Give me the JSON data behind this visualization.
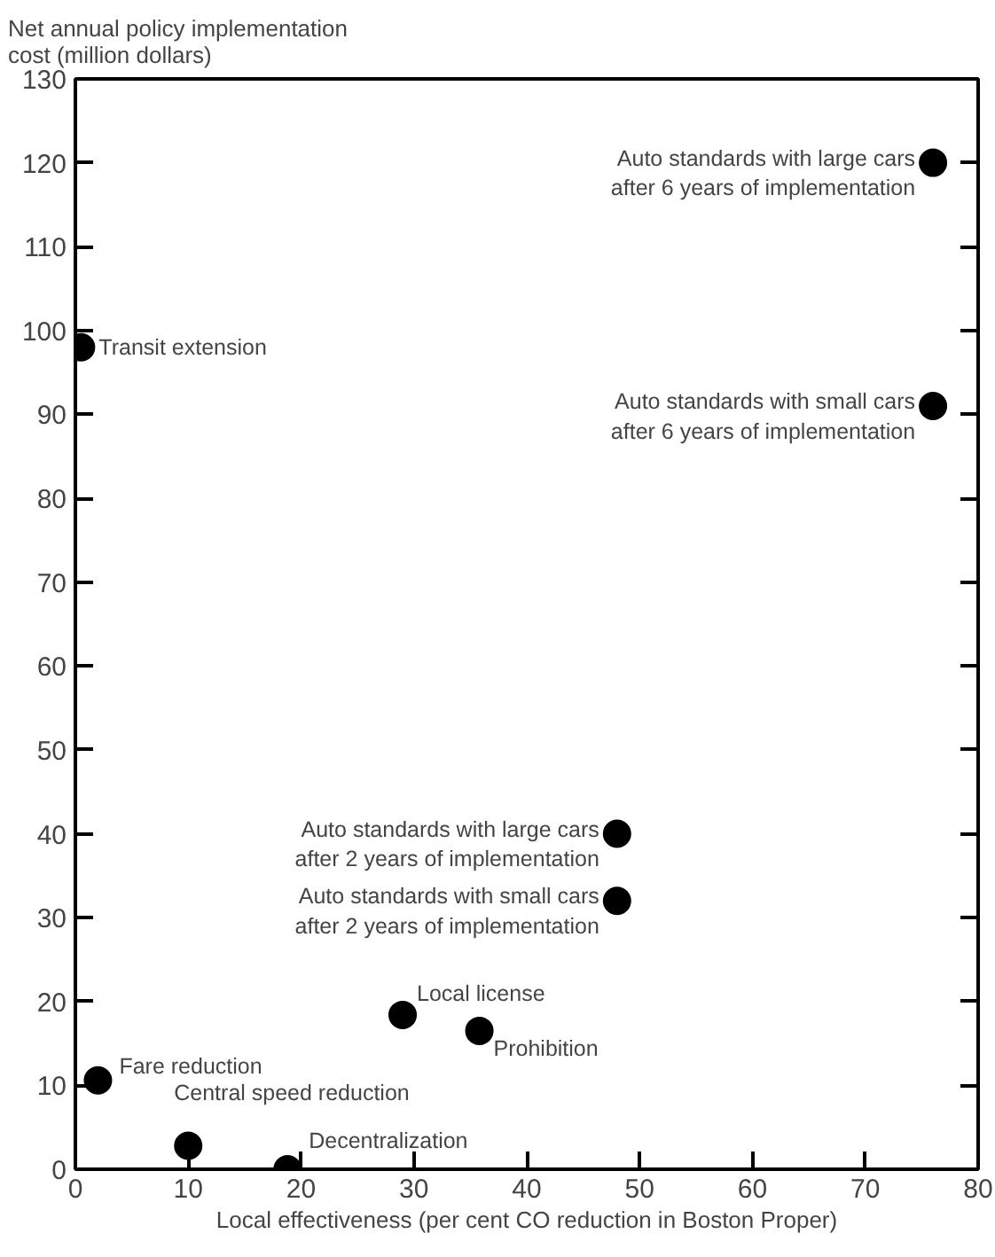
{
  "chart_data": {
    "type": "scatter",
    "xlabel": "Local effectiveness (per cent CO reduction in Boston Proper)",
    "ylabel": "Net annual policy implementation\ncost (million dollars)",
    "x": [
      0.5,
      76,
      76,
      48,
      48,
      29,
      35.8,
      2,
      10,
      18.8
    ],
    "series": [
      {
        "color": "#000000",
        "values": [
          98,
          120,
          91,
          40,
          32,
          18.4,
          16.5,
          10.6,
          2.8,
          0
        ]
      }
    ],
    "marker": "circle",
    "grid": false,
    "xlim": [
      0,
      80
    ],
    "xticks": [
      0,
      10,
      20,
      30,
      40,
      50,
      60,
      70,
      80
    ],
    "ylim": [
      0,
      130
    ],
    "yticks": [
      0,
      10,
      20,
      30,
      40,
      50,
      60,
      70,
      80,
      90,
      100,
      110,
      120,
      130
    ],
    "annotations": [
      {
        "text": "Transit extension",
        "x": 0.5,
        "y": 98
      },
      {
        "text": "Auto standards with large cars\nafter 6 years of implementation",
        "x": 76,
        "y": 120
      },
      {
        "text": "Auto standards with small cars\nafter 6 years of implementation",
        "x": 76,
        "y": 91
      },
      {
        "text": "Auto standards with large cars\nafter 2 years of implementation",
        "x": 48,
        "y": 40
      },
      {
        "text": "Auto standards with small cars\nafter 2 years of implementation",
        "x": 48,
        "y": 32
      },
      {
        "text": "Local license",
        "x": 29,
        "y": 18.4
      },
      {
        "text": "Prohibition",
        "x": 35.8,
        "y": 16.5
      },
      {
        "text": "Fare reduction",
        "x": 2,
        "y": 10.6
      },
      {
        "text": "Central speed reduction",
        "x": 10,
        "y": 2.8
      },
      {
        "text": "Decentralization",
        "x": 18.8,
        "y": 0
      }
    ]
  }
}
